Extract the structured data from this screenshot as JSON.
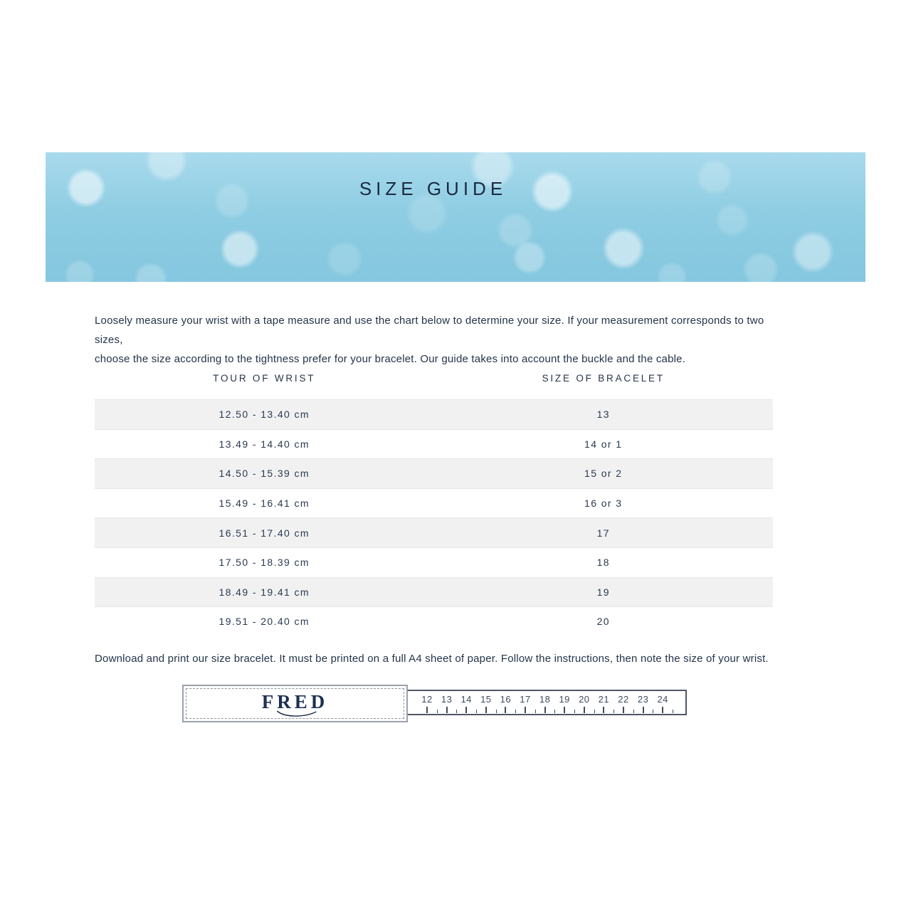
{
  "banner": {
    "title": "SIZE GUIDE"
  },
  "intro": {
    "lines": [
      "Loosely measure your wrist with a tape measure and use the chart below to determine your size. If your measurement corresponds to two sizes,",
      "choose the size according to the tightness prefer for your bracelet. Our guide takes into account the buckle and the cable."
    ]
  },
  "size_table": {
    "columns": [
      "TOUR OF WRIST",
      "SIZE OF BRACELET"
    ],
    "rows": [
      {
        "wrist": "12.50 - 13.40 cm",
        "bracelet": "13"
      },
      {
        "wrist": "13.49 - 14.40 cm",
        "bracelet": "14 or 1"
      },
      {
        "wrist": "14.50 - 15.39 cm",
        "bracelet": "15 or 2"
      },
      {
        "wrist": "15.49 - 16.41 cm",
        "bracelet": "16 or 3"
      },
      {
        "wrist": "16.51 - 17.40 cm",
        "bracelet": "17"
      },
      {
        "wrist": "17.50 - 18.39 cm",
        "bracelet": "18"
      },
      {
        "wrist": "18.49 - 19.41 cm",
        "bracelet": "19"
      },
      {
        "wrist": "19.51 - 20.40 cm",
        "bracelet": "20"
      }
    ]
  },
  "download_note": "Download and print our size bracelet. It must be printed on a full A4 sheet of paper. Follow the instructions, then note the size of your wrist.",
  "ruler": {
    "brand": "FRED",
    "numbers": [
      "12",
      "13",
      "14",
      "15",
      "16",
      "17",
      "18",
      "19",
      "20",
      "21",
      "22",
      "23",
      "24"
    ]
  },
  "colors": {
    "banner_blue": "#8fcde3",
    "title_navy": "#1b2940",
    "body_text": "#233449",
    "table_stripe": "#f1f1f2",
    "table_border": "#e4e7ea",
    "ruler_border": "#4d5765",
    "fred_box_border": "#9aa1ab",
    "fred_navy": "#1d3052"
  }
}
